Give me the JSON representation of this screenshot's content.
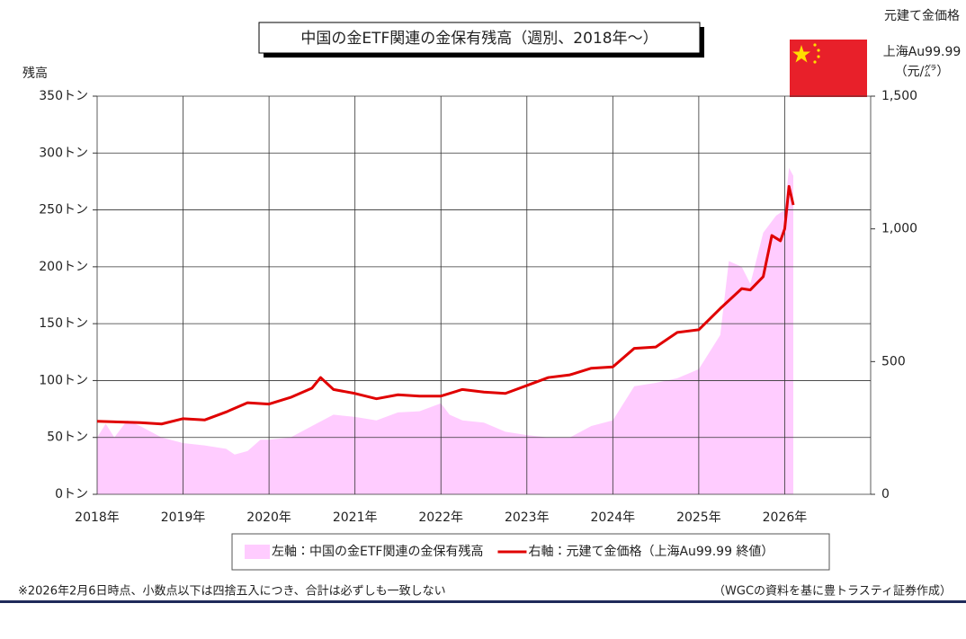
{
  "chart_data": {
    "type": "area-line",
    "title": "中国の金ETF関連の金保有残高（週別、2018年～）",
    "y_label": "残高",
    "y2_label": [
      "元建て金価格",
      "上海Au99.99",
      "（元/㌘）"
    ],
    "footnote": "※2026年2月6日時点、小数点以下は四捨五入につき、合計は必ずしも一致しない",
    "source": "（WGCの資料を基に豊トラスティ証券作成）",
    "xlim": [
      2018,
      2027
    ],
    "xticks": [
      {
        "value": 2018,
        "label": "2018年"
      },
      {
        "value": 2019,
        "label": "2019年"
      },
      {
        "value": 2020,
        "label": "2020年"
      },
      {
        "value": 2021,
        "label": "2021年"
      },
      {
        "value": 2022,
        "label": "2022年"
      },
      {
        "value": 2023,
        "label": "2023年"
      },
      {
        "value": 2024,
        "label": "2024年"
      },
      {
        "value": 2025,
        "label": "2025年"
      },
      {
        "value": 2026,
        "label": "2026年"
      }
    ],
    "ylim": [
      0,
      350
    ],
    "yticks": [
      {
        "value": 0,
        "label": "0トン"
      },
      {
        "value": 50,
        "label": "50トン"
      },
      {
        "value": 100,
        "label": "100トン"
      },
      {
        "value": 150,
        "label": "150トン"
      },
      {
        "value": 200,
        "label": "200トン"
      },
      {
        "value": 250,
        "label": "250トン"
      },
      {
        "value": 300,
        "label": "300トン"
      },
      {
        "value": 350,
        "label": "350トン"
      }
    ],
    "y2lim": [
      0,
      1500
    ],
    "y2ticks": [
      0,
      500,
      {
        "value": 1000,
        "label": "1,000"
      },
      {
        "value": 1500,
        "label": "1,500"
      }
    ],
    "grid": true,
    "series": [
      {
        "name": "左軸：中国の金ETF関連の金保有残高",
        "kind": "area",
        "color": "#ffccff",
        "x": [
          2018.0,
          2018.1,
          2018.2,
          2018.35,
          2018.5,
          2018.75,
          2019.0,
          2019.25,
          2019.5,
          2019.6,
          2019.75,
          2019.9,
          2020.0,
          2020.25,
          2020.5,
          2020.75,
          2021.0,
          2021.25,
          2021.5,
          2021.75,
          2022.0,
          2022.1,
          2022.25,
          2022.5,
          2022.75,
          2023.0,
          2023.25,
          2023.5,
          2023.75,
          2024.0,
          2024.25,
          2024.5,
          2024.75,
          2025.0,
          2025.25,
          2025.35,
          2025.5,
          2025.6,
          2025.75,
          2025.9,
          2026.0,
          2026.05,
          2026.1
        ],
        "values": [
          50,
          62,
          50,
          65,
          60,
          50,
          45,
          43,
          40,
          35,
          38,
          48,
          48,
          50,
          60,
          70,
          68,
          65,
          72,
          73,
          80,
          70,
          65,
          63,
          55,
          52,
          50,
          50,
          60,
          65,
          95,
          98,
          102,
          110,
          140,
          205,
          200,
          185,
          230,
          245,
          250,
          287,
          280
        ]
      },
      {
        "name": "右軸：元建て金価格（上海Au99.99 終値）",
        "kind": "line",
        "axis": "y2",
        "color": "#e00000",
        "x": [
          2018.0,
          2018.5,
          2018.75,
          2019.0,
          2019.25,
          2019.5,
          2019.75,
          2020.0,
          2020.25,
          2020.5,
          2020.6,
          2020.75,
          2021.0,
          2021.25,
          2021.5,
          2021.75,
          2022.0,
          2022.25,
          2022.5,
          2022.75,
          2023.0,
          2023.25,
          2023.5,
          2023.75,
          2024.0,
          2024.25,
          2024.5,
          2024.75,
          2025.0,
          2025.25,
          2025.5,
          2025.6,
          2025.75,
          2025.85,
          2025.95,
          2026.0,
          2026.05,
          2026.1
        ],
        "values": [
          275,
          270,
          265,
          285,
          280,
          310,
          345,
          340,
          365,
          400,
          440,
          395,
          380,
          360,
          375,
          370,
          370,
          395,
          385,
          380,
          410,
          440,
          450,
          475,
          480,
          550,
          555,
          610,
          620,
          700,
          775,
          770,
          820,
          975,
          955,
          1000,
          1160,
          1090
        ]
      }
    ]
  }
}
